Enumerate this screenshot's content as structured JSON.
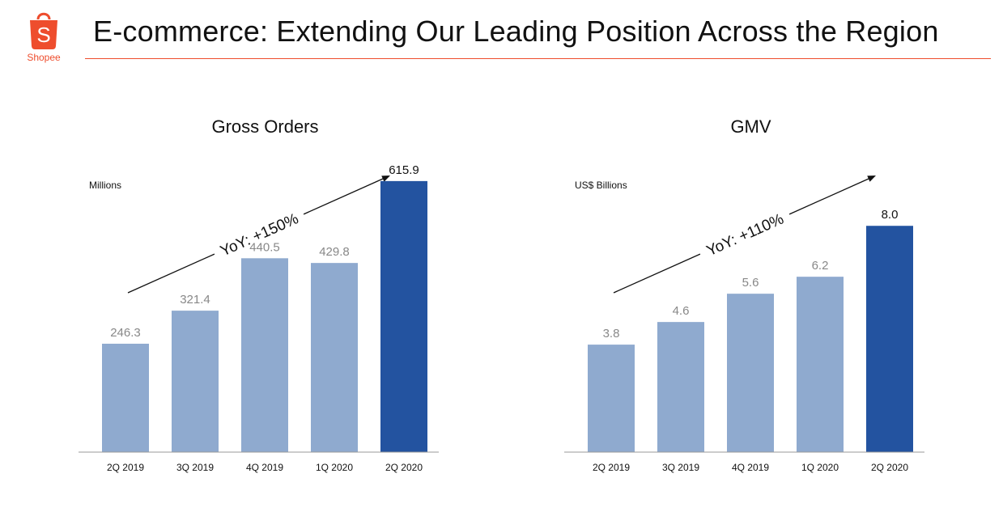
{
  "header": {
    "logo_glyph": "S",
    "logo_text": "Shopee",
    "title": "E-commerce: Extending Our Leading Position Across the Region",
    "accent_color": "#ee4d2d"
  },
  "chart_data": [
    {
      "type": "bar",
      "title": "Gross Orders",
      "unit_label": "Millions",
      "categories": [
        "2Q 2019",
        "3Q 2019",
        "4Q 2019",
        "1Q 2020",
        "2Q 2020"
      ],
      "values": [
        246.3,
        321.4,
        440.5,
        429.8,
        615.9
      ],
      "value_labels": [
        "246.3",
        "321.4",
        "440.5",
        "429.8",
        "615.9"
      ],
      "ylim": [
        0,
        680
      ],
      "annotation": "YoY: +150%",
      "colors": {
        "bar": "#8faacf",
        "highlight": "#2353a0",
        "label": "#888888",
        "highlight_label": "#111111"
      },
      "highlight_index": 4,
      "grid": false,
      "legend": "none"
    },
    {
      "type": "bar",
      "title": "GMV",
      "unit_label": "US$ Billions",
      "categories": [
        "2Q 2019",
        "3Q 2019",
        "4Q 2019",
        "1Q 2020",
        "2Q 2020"
      ],
      "values": [
        3.8,
        4.6,
        5.6,
        6.2,
        8.0
      ],
      "value_labels": [
        "3.8",
        "4.6",
        "5.6",
        "6.2",
        "8.0"
      ],
      "ylim": [
        0,
        10.58
      ],
      "annotation": "YoY: +110%",
      "colors": {
        "bar": "#8faacf",
        "highlight": "#2353a0",
        "label": "#888888",
        "highlight_label": "#111111"
      },
      "highlight_index": 4,
      "grid": false,
      "legend": "none"
    }
  ]
}
